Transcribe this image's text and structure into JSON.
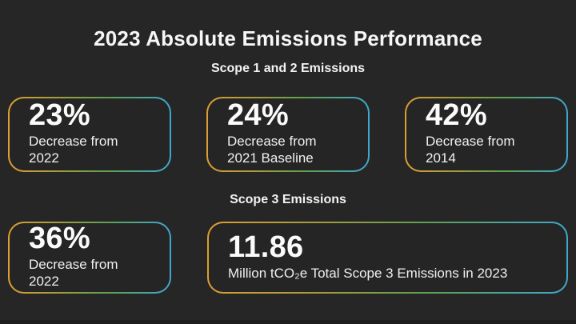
{
  "chart_data": {
    "type": "table",
    "title": "2023 Absolute Emissions Performance",
    "layout": "dark infographic slide with gradient-bordered stat cards, two labeled groups",
    "groups": [
      {
        "label": "Scope 1 and 2 Emissions",
        "stats": [
          {
            "value": "23%",
            "label": "Decrease from 2022"
          },
          {
            "value": "24%",
            "label": "Decrease from 2021 Baseline"
          },
          {
            "value": "42%",
            "label": "Decrease from 2014"
          }
        ]
      },
      {
        "label": "Scope 3 Emissions",
        "stats": [
          {
            "value": "36%",
            "label": "Decrease from 2022"
          },
          {
            "value": "11.86",
            "label": "Million tCO₂e Total Scope 3 Emissions in 2023"
          }
        ]
      }
    ]
  },
  "style": {
    "background_color": "#262626",
    "text_color": "#F5F5F5",
    "card_border_gradient": [
      "#DD9E32",
      "#5FA04F",
      "#3FA7CD"
    ]
  }
}
